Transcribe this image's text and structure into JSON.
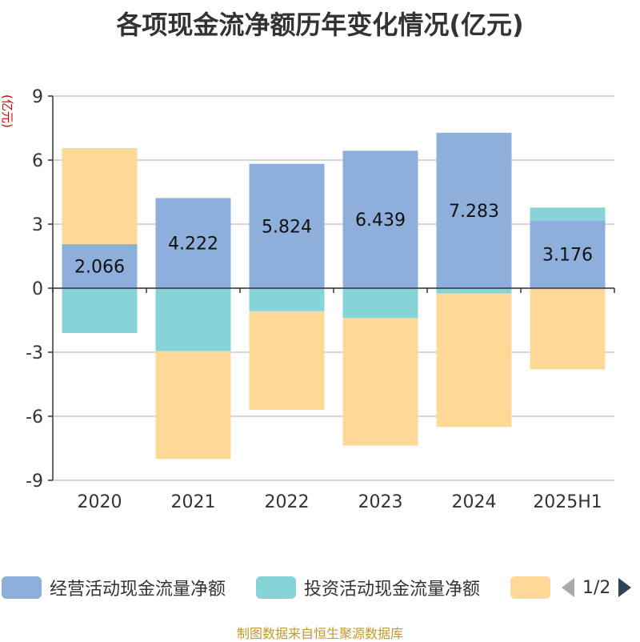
{
  "title": "各项现金流净额历年变化情况(亿元)",
  "footer": "制图数据来自恒生聚源数据库",
  "legend": {
    "items": [
      {
        "label": "经营活动现金流量净额",
        "color": "#8eaedb"
      },
      {
        "label": "投资活动现金流量净额",
        "color": "#86d4d8"
      },
      {
        "label": "",
        "color": "#fed897"
      }
    ],
    "page": "1/2"
  },
  "chart_data": {
    "type": "bar",
    "stacked": true,
    "ylabel": "(亿元)",
    "ylim": [
      -9,
      9
    ],
    "yticks": [
      9,
      6,
      3,
      0,
      -3,
      -6,
      -9
    ],
    "grid": true,
    "categories": [
      "2020",
      "2021",
      "2022",
      "2023",
      "2024",
      "2025H1"
    ],
    "series": [
      {
        "name": "经营活动现金流量净额",
        "color": "#8eaedb",
        "values": [
          2.066,
          4.222,
          5.824,
          6.439,
          7.283,
          3.176
        ],
        "labels": [
          "2.066",
          "4.222",
          "5.824",
          "6.439",
          "7.283",
          "3.176"
        ]
      },
      {
        "name": "投资活动现金流量净额",
        "color": "#86d4d8",
        "values": [
          -2.1,
          -2.95,
          -1.08,
          -1.4,
          -0.25,
          0.6
        ]
      },
      {
        "color": "#fed897",
        "values": [
          4.5,
          -5.05,
          -4.62,
          -5.97,
          -6.25,
          -3.8
        ]
      }
    ]
  }
}
